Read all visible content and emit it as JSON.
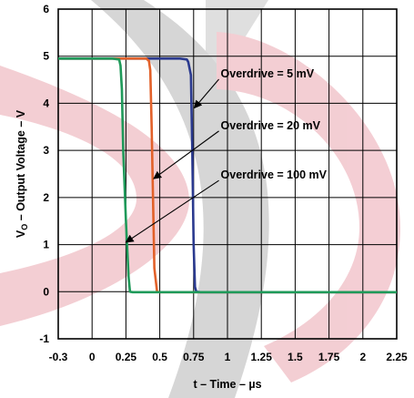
{
  "chart_data": {
    "type": "line",
    "title": "",
    "xlabel": "t – Time – µs",
    "ylabel_main": "V",
    "ylabel_sub": "O",
    "ylabel_rest": " – Output Voltage – V",
    "xlim": [
      -0.3,
      2.25
    ],
    "ylim": [
      -1,
      6
    ],
    "xticks": [
      "-0.3",
      "0",
      "0.25",
      "0.5",
      "0.75",
      "1",
      "1.25",
      "1.5",
      "1.75",
      "2",
      "2.25"
    ],
    "xtick_values": [
      -0.3,
      0,
      0.25,
      0.5,
      0.75,
      1,
      1.25,
      1.5,
      1.75,
      2,
      2.25
    ],
    "yticks": [
      "-1",
      "0",
      "1",
      "2",
      "3",
      "4",
      "5",
      "6"
    ],
    "ytick_values": [
      -1,
      0,
      1,
      2,
      3,
      4,
      5,
      6
    ],
    "grid": true,
    "series": [
      {
        "name": "Overdrive = 5 mV",
        "color": "#2b3a8f",
        "x": [
          -0.3,
          0.5,
          0.65,
          0.7,
          0.71,
          0.73,
          0.74,
          0.75,
          0.76,
          0.77,
          0.8,
          1.0,
          2.25
        ],
        "y": [
          4.95,
          4.95,
          4.95,
          4.93,
          4.88,
          4.6,
          3.0,
          1.0,
          0.1,
          0.0,
          -0.01,
          -0.01,
          -0.01
        ]
      },
      {
        "name": "Overdrive = 20 mV",
        "color": "#e2612a",
        "x": [
          -0.3,
          0.3,
          0.4,
          0.42,
          0.43,
          0.44,
          0.45,
          0.46,
          0.48,
          0.5,
          0.6,
          2.25
        ],
        "y": [
          4.95,
          4.95,
          4.95,
          4.9,
          4.7,
          3.5,
          2.0,
          0.5,
          0.0,
          -0.01,
          -0.01,
          -0.01
        ]
      },
      {
        "name": "Overdrive = 100 mV",
        "color": "#1f9a5a",
        "x": [
          -0.3,
          0.15,
          0.2,
          0.21,
          0.22,
          0.23,
          0.25,
          0.27,
          0.28,
          0.3,
          0.4,
          2.25
        ],
        "y": [
          4.95,
          4.95,
          4.93,
          4.8,
          4.3,
          3.0,
          1.5,
          0.3,
          0.0,
          -0.01,
          -0.01,
          -0.01
        ]
      }
    ],
    "annotations": [
      {
        "text": "Overdrive = 5 mV",
        "text_x": 0.95,
        "text_y": 4.55,
        "arrow_to_x": 0.755,
        "arrow_to_y": 3.9
      },
      {
        "text": "Overdrive = 20 mV",
        "text_x": 0.95,
        "text_y": 3.45,
        "arrow_to_x": 0.455,
        "arrow_to_y": 2.4
      },
      {
        "text": "Overdrive = 100 mV",
        "text_x": 0.95,
        "text_y": 2.4,
        "arrow_to_x": 0.25,
        "arrow_to_y": 1.05
      }
    ]
  }
}
